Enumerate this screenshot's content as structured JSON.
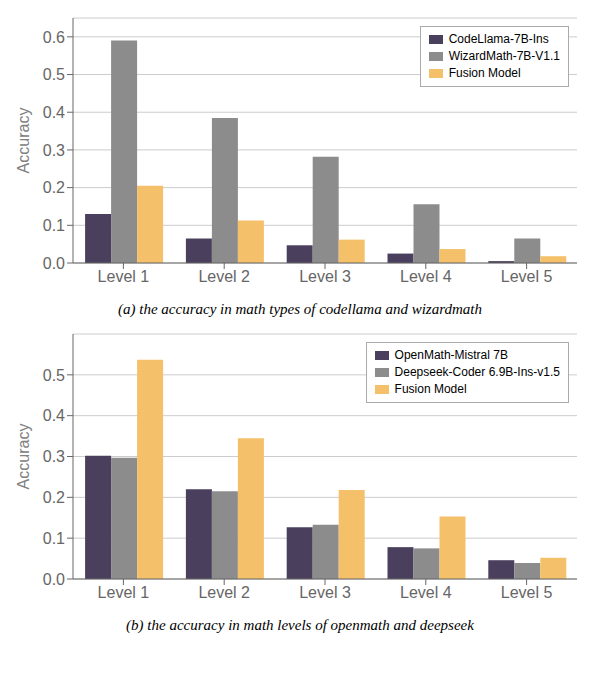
{
  "chart_data": [
    {
      "type": "bar",
      "title": "(a) the accuracy in math types of codellama and wizardmath",
      "categories": [
        "Level 1",
        "Level 2",
        "Level 3",
        "Level 4",
        "Level 5"
      ],
      "series": [
        {
          "name": "CodeLlama-7B-Ins",
          "color": "#4a3f5c",
          "values": [
            0.13,
            0.065,
            0.047,
            0.025,
            0.005
          ]
        },
        {
          "name": "WizardMath-7B-V1.1",
          "color": "#8c8c8c",
          "values": [
            0.59,
            0.385,
            0.282,
            0.156,
            0.065
          ]
        },
        {
          "name": "Fusion Model",
          "color": "#f5c06a",
          "values": [
            0.205,
            0.113,
            0.062,
            0.037,
            0.018
          ]
        }
      ],
      "ylabel": "Accuracy",
      "ylim": [
        0.0,
        0.65
      ],
      "yticks": [
        {
          "value": 0.0,
          "label": "0.0"
        },
        0.1,
        0.2,
        0.3,
        0.4,
        0.5,
        0.6
      ],
      "grid": true,
      "legend": "upper right"
    },
    {
      "type": "bar",
      "title": "(b) the accuracy in math levels of openmath and deepseek",
      "categories": [
        "Level 1",
        "Level 2",
        "Level 3",
        "Level 4",
        "Level 5"
      ],
      "series": [
        {
          "name": "OpenMath-Mistral 7B",
          "color": "#4a3f5c",
          "values": [
            0.302,
            0.22,
            0.127,
            0.078,
            0.046
          ]
        },
        {
          "name": "Deepseek-Coder 6.9B-Ins-v1.5",
          "color": "#8c8c8c",
          "values": [
            0.297,
            0.215,
            0.133,
            0.075,
            0.039
          ]
        },
        {
          "name": "Fusion Model",
          "color": "#f5c06a",
          "values": [
            0.537,
            0.345,
            0.218,
            0.153,
            0.052
          ]
        }
      ],
      "ylabel": "Accuracy",
      "ylim": [
        0.0,
        0.6
      ],
      "yticks": [
        {
          "value": 0.0,
          "label": "0.0"
        },
        0.1,
        0.2,
        0.3,
        0.4,
        0.5
      ],
      "grid": true,
      "legend": "upper right"
    }
  ]
}
